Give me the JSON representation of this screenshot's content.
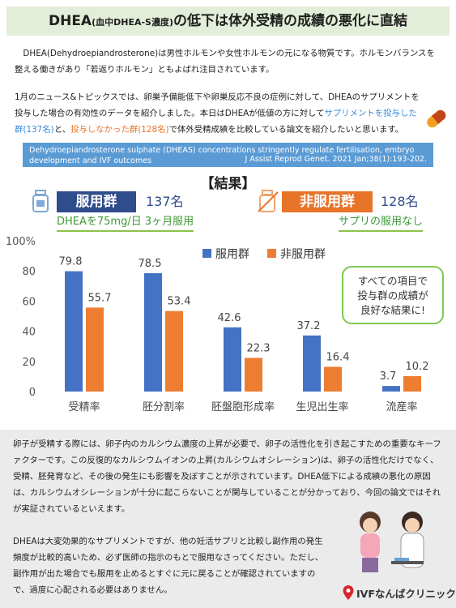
{
  "header": {
    "title": [
      "DHEA",
      "(血中DHEA-S濃度)",
      "の低下は体外受精の成績の悪化に直結"
    ]
  },
  "intro": {
    "paragraph1": "DHEA(Dehydroepiandrosterone)は男性ホルモンや女性ホルモンの元になる物質です。ホルモンバランスを整える働きがあり「若返りホルモン」ともよばれ注目されています。",
    "paragraph2": [
      "1月のニュース&トピックスでは、卵巣予備能低下や卵巣反応不良の症例に対して、DHEAのサプリメントを投与した場合の有効性のデータを紹介しました。本日はDHEAが低値の方に対して",
      "サプリメントを投与した群(137名)",
      "と、",
      "投与しなかった群(128名)",
      "で体外受精成績を比較している論文を紹介したいと思います。"
    ]
  },
  "reference": {
    "title": "Dehydroepiandrosterone sulphate (DHEAS) concentrations stringently regulate fertilisation, embryo development and IVF outcomes",
    "journal": "J Assist Reprod Genet. 2021 Jan;38(1):193-202."
  },
  "results": {
    "heading": "【結果】",
    "groups": [
      {
        "name": "服用群",
        "count": "137名",
        "note": "DHEAを75mg/日 3ヶ月服用"
      },
      {
        "name": "非服用群",
        "count": "128名",
        "note": "サプリの服用なし"
      }
    ],
    "callout": [
      "すべての項目で",
      "投与群の成績が",
      "良好な結果に!"
    ]
  },
  "chart_data": {
    "type": "bar",
    "categories": [
      "受精率",
      "胚分割率",
      "胚盤胞形成率",
      "生児出生率",
      "流産率"
    ],
    "series": [
      {
        "name": "服用群",
        "color": "#4472c4",
        "values": [
          79.8,
          78.5,
          42.6,
          37.2,
          3.7
        ]
      },
      {
        "name": "非服用群",
        "color": "#ed7d31",
        "values": [
          55.7,
          53.4,
          22.3,
          16.4,
          10.2
        ]
      }
    ],
    "ylim": [
      0,
      100
    ],
    "yticks": [
      0,
      20,
      40,
      60,
      80,
      {
        "value": 100,
        "label": "100%"
      }
    ],
    "grid": false,
    "legend": "top"
  },
  "discussion": {
    "paragraph1": "卵子が受精する際には、卵子内のカルシウム濃度の上昇が必要で、卵子の活性化を引き起こすための重要なキーファクターです。この反復的なカルシウムイオンの上昇(カルシウムオシレーション)は、卵子の活性化だけでなく、受精、胚発育など、その後の発生にも影響を及ぼすことが示されています。DHEA低下による成績の悪化の原因は、カルシウムオシレーションが十分に起こらないことが関与していることが分かっており、今回の論文ではそれが実証されているといえます。",
    "paragraph2": "DHEAは大変効果的なサプリメントですが、他の妊活サプリと比較し副作用の発生頻度が比較的高いため、必ず医師の指示のもとで服用なさってください。ただし、副作用が出た場合でも服用を止めるとすぐに元に戻ることが確認されていますので、過度に心配される必要はありません。"
  },
  "footer": {
    "clinic": "IVFなんばクリニック"
  }
}
